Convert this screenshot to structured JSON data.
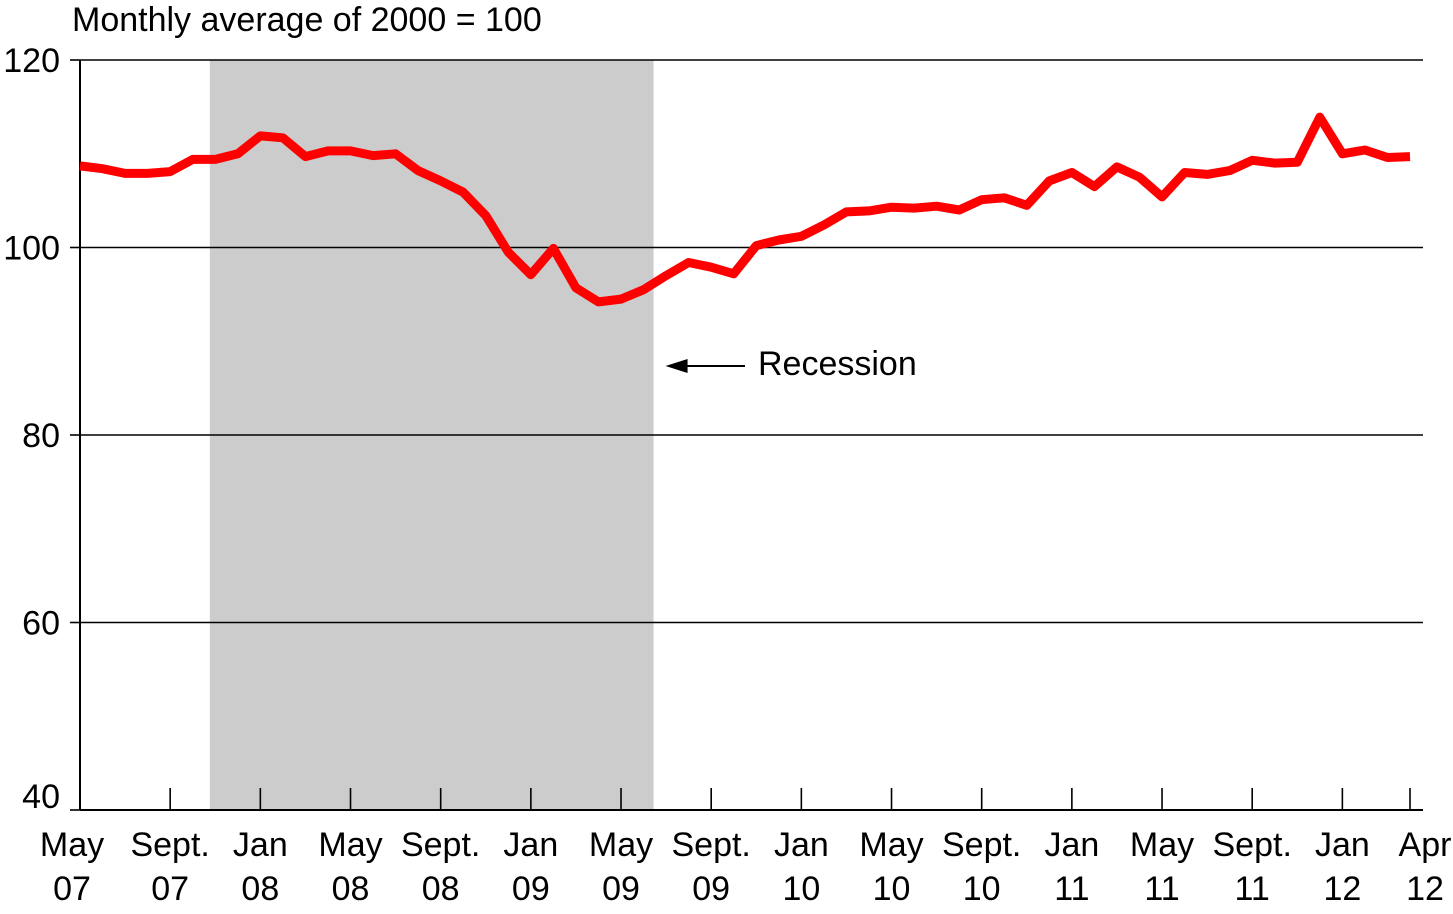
{
  "chart_data": {
    "type": "line",
    "title": "Monthly average of 2000 = 100",
    "xlabel": "",
    "ylabel": "",
    "ylim": [
      40,
      120
    ],
    "yticks": [
      40,
      60,
      80,
      100,
      120
    ],
    "grid": true,
    "x_start": "2007-05",
    "x_end": "2012-04",
    "x_tick_labels": [
      {
        "month": "2007-05",
        "line1": "May",
        "line2": "07"
      },
      {
        "month": "2007-09",
        "line1": "Sept.",
        "line2": "07"
      },
      {
        "month": "2008-01",
        "line1": "Jan",
        "line2": "08"
      },
      {
        "month": "2008-05",
        "line1": "May",
        "line2": "08"
      },
      {
        "month": "2008-09",
        "line1": "Sept.",
        "line2": "08"
      },
      {
        "month": "2009-01",
        "line1": "Jan",
        "line2": "09"
      },
      {
        "month": "2009-05",
        "line1": "May",
        "line2": "09"
      },
      {
        "month": "2009-09",
        "line1": "Sept.",
        "line2": "09"
      },
      {
        "month": "2010-01",
        "line1": "Jan",
        "line2": "10"
      },
      {
        "month": "2010-05",
        "line1": "May",
        "line2": "10"
      },
      {
        "month": "2010-09",
        "line1": "Sept.",
        "line2": "10"
      },
      {
        "month": "2011-01",
        "line1": "Jan",
        "line2": "11"
      },
      {
        "month": "2011-05",
        "line1": "May",
        "line2": "11"
      },
      {
        "month": "2011-09",
        "line1": "Sept.",
        "line2": "11"
      },
      {
        "month": "2012-01",
        "line1": "Jan",
        "line2": "12"
      },
      {
        "month": "2012-04",
        "line1": "Apr",
        "line2": "12"
      }
    ],
    "recession": {
      "start": "2007-12",
      "end": "2009-06",
      "label": "Recession"
    },
    "series": [
      {
        "color": "#ff0000",
        "x": [
          "2007-05",
          "2007-06",
          "2007-07",
          "2007-08",
          "2007-09",
          "2007-10",
          "2007-11",
          "2007-12",
          "2008-01",
          "2008-02",
          "2008-03",
          "2008-04",
          "2008-05",
          "2008-06",
          "2008-07",
          "2008-08",
          "2008-09",
          "2008-10",
          "2008-11",
          "2008-12",
          "2009-01",
          "2009-02",
          "2009-03",
          "2009-04",
          "2009-05",
          "2009-06",
          "2009-07",
          "2009-08",
          "2009-09",
          "2009-10",
          "2009-11",
          "2009-12",
          "2010-01",
          "2010-02",
          "2010-03",
          "2010-04",
          "2010-05",
          "2010-06",
          "2010-07",
          "2010-08",
          "2010-09",
          "2010-10",
          "2010-11",
          "2010-12",
          "2011-01",
          "2011-02",
          "2011-03",
          "2011-04",
          "2011-05",
          "2011-06",
          "2011-07",
          "2011-08",
          "2011-09",
          "2011-10",
          "2011-11",
          "2011-12",
          "2012-01",
          "2012-02",
          "2012-03",
          "2012-04"
        ],
        "values": [
          108.7,
          108.4,
          107.9,
          107.9,
          108.1,
          109.4,
          109.4,
          110.0,
          111.9,
          111.7,
          109.7,
          110.3,
          110.3,
          109.8,
          110.0,
          108.2,
          107.1,
          105.9,
          103.4,
          99.5,
          97.1,
          99.9,
          95.7,
          94.2,
          94.5,
          95.5,
          97.0,
          98.4,
          97.9,
          97.2,
          100.2,
          100.8,
          101.2,
          102.4,
          103.8,
          103.9,
          104.3,
          104.2,
          104.4,
          104.0,
          105.1,
          105.3,
          104.5,
          107.1,
          108.0,
          106.5,
          108.6,
          107.5,
          105.4,
          108.0,
          107.8,
          108.2,
          109.3,
          109.0,
          109.1,
          113.9,
          110.0,
          110.4,
          109.6,
          109.7
        ]
      }
    ]
  }
}
